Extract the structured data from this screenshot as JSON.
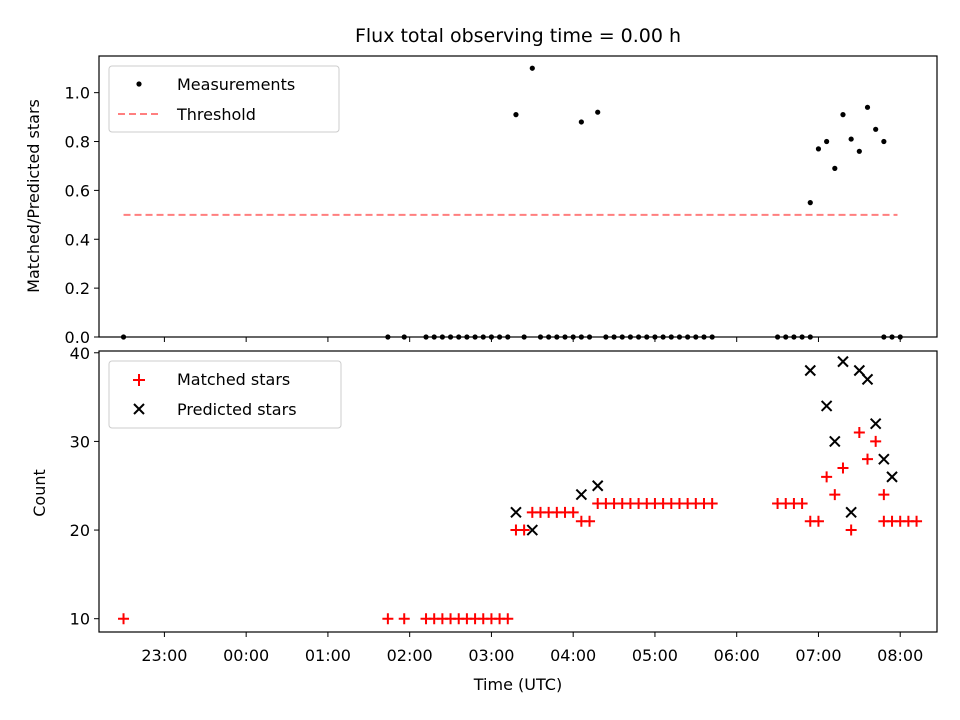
{
  "chart_data": [
    {
      "type": "scatter",
      "title": "Flux total observing time = 0.00 h",
      "xlabel": "",
      "ylabel": "Matched/Predicted stars",
      "ylim": [
        0,
        1.15
      ],
      "yticks": [
        0.0,
        0.2,
        0.4,
        0.6,
        0.8,
        1.0
      ],
      "ytick_labels": [
        "0.0",
        "0.2",
        "0.4",
        "0.6",
        "0.8",
        "1.0"
      ],
      "grid": false,
      "legend": "top-left",
      "legend_entries": [
        "Measurements",
        "Threshold"
      ],
      "threshold": {
        "value": 0.5,
        "x_start": "22:30",
        "x_end": "07:58",
        "color": "#ff7f7f"
      },
      "series": [
        {
          "name": "Measurements",
          "color": "#000000",
          "marker": "dot",
          "points": [
            [
              "22:30",
              0
            ],
            [
              "01:44",
              0
            ],
            [
              "01:56",
              0
            ],
            [
              "02:12",
              0
            ],
            [
              "02:18",
              0
            ],
            [
              "02:24",
              0
            ],
            [
              "02:30",
              0
            ],
            [
              "02:36",
              0
            ],
            [
              "02:42",
              0
            ],
            [
              "02:48",
              0
            ],
            [
              "02:54",
              0
            ],
            [
              "03:00",
              0
            ],
            [
              "03:06",
              0
            ],
            [
              "03:12",
              0
            ],
            [
              "03:18",
              0.91
            ],
            [
              "03:24",
              0
            ],
            [
              "03:30",
              1.1
            ],
            [
              "03:36",
              0
            ],
            [
              "03:42",
              0
            ],
            [
              "03:48",
              0
            ],
            [
              "03:54",
              0
            ],
            [
              "04:00",
              0
            ],
            [
              "04:06",
              0
            ],
            [
              "04:06",
              0.88
            ],
            [
              "04:12",
              0
            ],
            [
              "04:18",
              0.92
            ],
            [
              "04:24",
              0
            ],
            [
              "04:30",
              0
            ],
            [
              "04:36",
              0
            ],
            [
              "04:42",
              0
            ],
            [
              "04:48",
              0
            ],
            [
              "04:54",
              0
            ],
            [
              "05:00",
              0
            ],
            [
              "05:06",
              0
            ],
            [
              "05:12",
              0
            ],
            [
              "05:18",
              0
            ],
            [
              "05:24",
              0
            ],
            [
              "05:30",
              0
            ],
            [
              "05:36",
              0
            ],
            [
              "05:42",
              0
            ],
            [
              "06:30",
              0
            ],
            [
              "06:36",
              0
            ],
            [
              "06:42",
              0
            ],
            [
              "06:48",
              0
            ],
            [
              "06:54",
              0.55
            ],
            [
              "06:54",
              0
            ],
            [
              "07:00",
              0.77
            ],
            [
              "07:06",
              0.8
            ],
            [
              "07:12",
              0.69
            ],
            [
              "07:18",
              0.91
            ],
            [
              "07:24",
              0.81
            ],
            [
              "07:30",
              0.76
            ],
            [
              "07:36",
              0.94
            ],
            [
              "07:42",
              0.85
            ],
            [
              "07:48",
              0.8
            ],
            [
              "07:48",
              0
            ],
            [
              "07:54",
              0
            ],
            [
              "08:00",
              0
            ]
          ]
        }
      ]
    },
    {
      "type": "scatter",
      "title": "",
      "xlabel": "Time (UTC)",
      "ylabel": "Count",
      "ylim": [
        8.5,
        40.2
      ],
      "yticks": [
        10,
        20,
        30,
        40
      ],
      "ytick_labels": [
        "10",
        "20",
        "30",
        "40"
      ],
      "xlim": [
        "22:12",
        "08:27"
      ],
      "xticks": [
        "23:00",
        "00:00",
        "01:00",
        "02:00",
        "03:00",
        "04:00",
        "05:00",
        "06:00",
        "07:00",
        "08:00"
      ],
      "xtick_labels": [
        "23:00",
        "00:00",
        "01:00",
        "02:00",
        "03:00",
        "04:00",
        "05:00",
        "06:00",
        "07:00",
        "08:00"
      ],
      "grid": false,
      "legend": "top-left",
      "legend_entries": [
        "Matched stars",
        "Predicted stars"
      ],
      "series": [
        {
          "name": "Matched stars",
          "color": "#ff0000",
          "marker": "plus",
          "points": [
            [
              "22:30",
              10
            ],
            [
              "01:44",
              10
            ],
            [
              "01:56",
              10
            ],
            [
              "02:12",
              10
            ],
            [
              "02:18",
              10
            ],
            [
              "02:24",
              10
            ],
            [
              "02:30",
              10
            ],
            [
              "02:36",
              10
            ],
            [
              "02:42",
              10
            ],
            [
              "02:48",
              10
            ],
            [
              "02:54",
              10
            ],
            [
              "03:00",
              10
            ],
            [
              "03:06",
              10
            ],
            [
              "03:12",
              10
            ],
            [
              "03:18",
              20
            ],
            [
              "03:24",
              20
            ],
            [
              "03:30",
              22
            ],
            [
              "03:36",
              22
            ],
            [
              "03:42",
              22
            ],
            [
              "03:48",
              22
            ],
            [
              "03:54",
              22
            ],
            [
              "04:00",
              22
            ],
            [
              "04:06",
              21
            ],
            [
              "04:12",
              21
            ],
            [
              "04:18",
              23
            ],
            [
              "04:24",
              23
            ],
            [
              "04:30",
              23
            ],
            [
              "04:36",
              23
            ],
            [
              "04:42",
              23
            ],
            [
              "04:48",
              23
            ],
            [
              "04:54",
              23
            ],
            [
              "05:00",
              23
            ],
            [
              "05:06",
              23
            ],
            [
              "05:12",
              23
            ],
            [
              "05:18",
              23
            ],
            [
              "05:24",
              23
            ],
            [
              "05:30",
              23
            ],
            [
              "05:36",
              23
            ],
            [
              "05:42",
              23
            ],
            [
              "06:30",
              23
            ],
            [
              "06:36",
              23
            ],
            [
              "06:42",
              23
            ],
            [
              "06:48",
              23
            ],
            [
              "06:54",
              21
            ],
            [
              "07:00",
              21
            ],
            [
              "07:06",
              26
            ],
            [
              "07:12",
              24
            ],
            [
              "07:18",
              27
            ],
            [
              "07:24",
              20
            ],
            [
              "07:30",
              31
            ],
            [
              "07:36",
              28
            ],
            [
              "07:42",
              30
            ],
            [
              "07:48",
              24
            ],
            [
              "07:48",
              21
            ],
            [
              "07:54",
              21
            ],
            [
              "08:00",
              21
            ],
            [
              "08:06",
              21
            ],
            [
              "08:12",
              21
            ]
          ]
        },
        {
          "name": "Predicted stars",
          "color": "#000000",
          "marker": "x",
          "points": [
            [
              "03:18",
              22
            ],
            [
              "03:30",
              20
            ],
            [
              "04:06",
              24
            ],
            [
              "04:18",
              25
            ],
            [
              "06:54",
              38
            ],
            [
              "07:06",
              34
            ],
            [
              "07:12",
              30
            ],
            [
              "07:18",
              39
            ],
            [
              "07:24",
              22
            ],
            [
              "07:30",
              38
            ],
            [
              "07:36",
              37
            ],
            [
              "07:42",
              32
            ],
            [
              "07:48",
              28
            ],
            [
              "07:54",
              26
            ]
          ]
        }
      ]
    }
  ]
}
